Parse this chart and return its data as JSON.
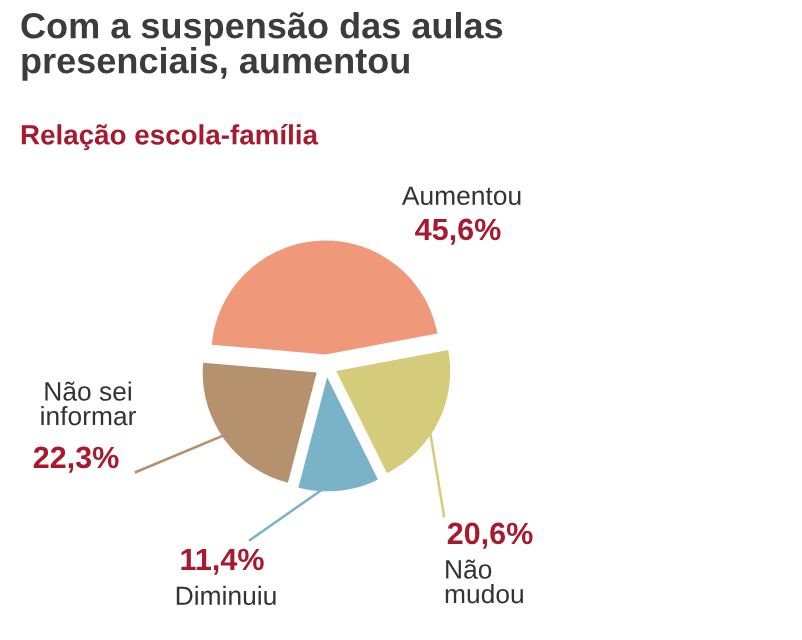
{
  "chart_data": {
    "type": "pie",
    "title": "Com a suspensão das aulas\npresenciais, aumentou",
    "subtitle": "Relação escola-família",
    "categories": [
      "Aumentou",
      "Não\nmudou",
      "Diminuiu",
      "Não sei\ninformar"
    ],
    "values": [
      45.6,
      20.6,
      11.4,
      22.3
    ],
    "value_labels": [
      "45,6%",
      "20,6%",
      "11,4%",
      "22,3%"
    ],
    "colors": [
      "#f0997a",
      "#d4cc7a",
      "#7ab3c8",
      "#b5916e"
    ],
    "legend": false
  }
}
